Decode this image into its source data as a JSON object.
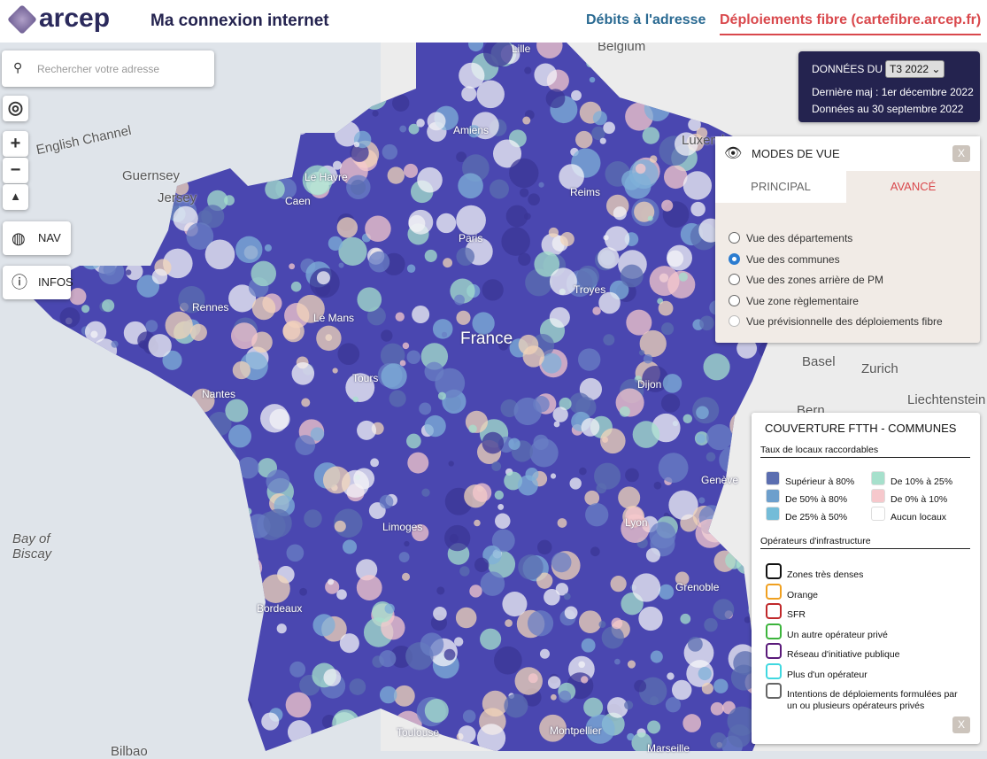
{
  "header": {
    "logo": "arcep",
    "title": "Ma connexion internet",
    "nav": [
      "Débits à l'adresse",
      "Déploiements fibre (cartefibre.arcep.fr)"
    ]
  },
  "search": {
    "placeholder": "Rechercher votre adresse"
  },
  "controls": {
    "zoom_in": "+",
    "zoom_out": "−",
    "nav": "NAV",
    "infos": "INFOS"
  },
  "data_panel": {
    "label": "DONNÉES DU",
    "selected": "T3 2022",
    "updated": "Dernière maj : 1er décembre 2022",
    "data_date": "Données au 30 septembre 2022"
  },
  "modes": {
    "title": "MODES DE VUE",
    "close": "X",
    "tabs": [
      "PRINCIPAL",
      "AVANCÉ"
    ],
    "options": [
      "Vue des départements",
      "Vue des communes",
      "Vue des zones arrière de PM",
      "Vue zone règlementaire",
      "Vue prévisionnelle des déploiements fibre"
    ]
  },
  "legend": {
    "title": "COUVERTURE FTTH - COMMUNES",
    "section1": "Taux de locaux raccordables",
    "items": [
      {
        "label": "Supérieur à 80%",
        "color": "#5b6eb0"
      },
      {
        "label": "De 10% à 25%",
        "color": "#a6e0cc"
      },
      {
        "label": "De 50% à 80%",
        "color": "#6d9fcc"
      },
      {
        "label": "De 0% à 10%",
        "color": "#f6c8cc"
      },
      {
        "label": "De 25% à 50%",
        "color": "#74bcd8"
      },
      {
        "label": "Aucun locaux",
        "color": "#ffffff"
      }
    ],
    "section2": "Opérateurs d'infrastructure",
    "operators": [
      {
        "label": "Zones très denses",
        "color": "#111111"
      },
      {
        "label": "Orange",
        "color": "#f0a020"
      },
      {
        "label": "SFR",
        "color": "#c0282a"
      },
      {
        "label": "Un autre opérateur privé",
        "color": "#3cb43c"
      },
      {
        "label": "Réseau d'initiative publique",
        "color": "#5a1a7a"
      },
      {
        "label": "Plus d'un opérateur",
        "color": "#40d8e0"
      },
      {
        "label": "Intentions de déploiements formulées par un ou plusieurs opérateurs privés",
        "color": "#666666"
      }
    ],
    "close": "X"
  },
  "map_labels": [
    "Belgium",
    "Lille",
    "English Channel",
    "Guernsey",
    "Jersey",
    "Le Havre",
    "Caen",
    "Amiens",
    "Reims",
    "Luxembourg",
    "Paris",
    "Rennes",
    "Le Mans",
    "France",
    "Troyes",
    "Tours",
    "Nantes",
    "Dijon",
    "Basel",
    "Zurich",
    "Liechtenstein",
    "Bern",
    "Genève",
    "Limoges",
    "Lyon",
    "Bay of Biscay",
    "Grenoble",
    "Bordeaux",
    "Toulouse",
    "Montpellier",
    "Marseille",
    "Bilbao"
  ]
}
